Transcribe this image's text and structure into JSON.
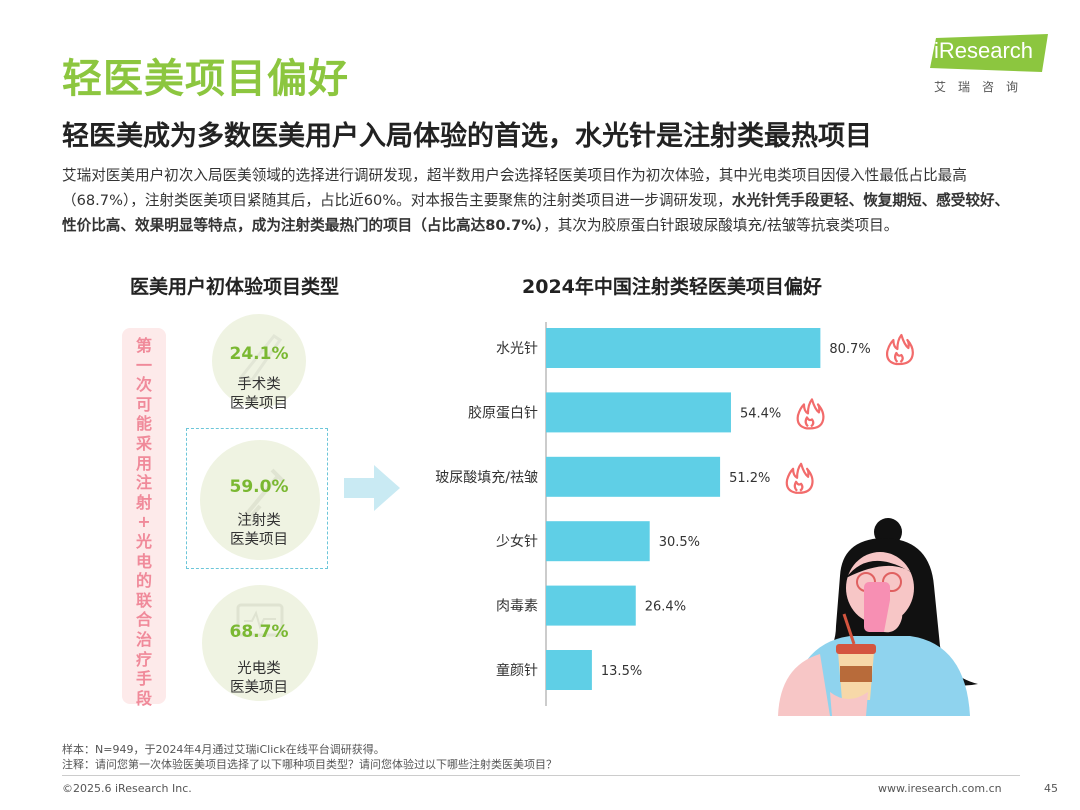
{
  "header": {
    "title": "轻医美项目偏好",
    "logo_text": "iResearch",
    "logo_sub": "艾瑞咨询",
    "subtitle": "轻医美成为多数医美用户入局体验的首选，水光针是注射类最热项目"
  },
  "description": {
    "part1": "艾瑞对医美用户初次入局医美领域的选择进行调研发现，超半数用户会选择轻医美项目作为初次体验，其中光电类项目因侵入性最低占比最高（68.7%），注射类医美项目紧随其后，占比近60%。对本报告主要聚焦的注射类项目进一步调研发现，",
    "bold": "水光针凭手段更轻、恢复期短、感受较好、性价比高、效果明显等特点，成为注射类最热门的项目（占比高达80.7%）",
    "part2": "，其次为胶原蛋白针跟玻尿酸填充/祛皱等抗衰类项目。"
  },
  "left_panel": {
    "title": "医美用户初体验项目类型",
    "side_label": "第一次可能采用注射+光电的联合治疗手段",
    "items": [
      {
        "pct": "24.1%",
        "label_line1": "手术类",
        "label_line2": "医美项目",
        "icon": "scalpel-icon"
      },
      {
        "pct": "59.0%",
        "label_line1": "注射类",
        "label_line2": "医美项目",
        "icon": "syringe-icon"
      },
      {
        "pct": "68.7%",
        "label_line1": "光电类",
        "label_line2": "医美项目",
        "icon": "device-icon"
      }
    ]
  },
  "chart_data": {
    "type": "bar",
    "orientation": "horizontal",
    "title": "2024年中国注射类轻医美项目偏好",
    "categories": [
      "水光针",
      "胶原蛋白针",
      "玻尿酸填充/祛皱",
      "少女针",
      "肉毒素",
      "童颜针"
    ],
    "values": [
      80.7,
      54.4,
      51.2,
      30.5,
      26.4,
      13.5
    ],
    "value_labels": [
      "80.7%",
      "54.4%",
      "51.2%",
      "30.5%",
      "26.4%",
      "13.5%"
    ],
    "hot_flags": [
      true,
      true,
      true,
      false,
      false,
      false
    ],
    "xlim": [
      0,
      100
    ],
    "bar_color": "#5fcfe6",
    "flame_color": "#f26b6b",
    "grid": false
  },
  "colors": {
    "accent_green": "#8cc63f",
    "pct_green": "#7ab832",
    "pink": "#f08a9a",
    "cyan": "#5fcfe6"
  },
  "footer": {
    "sample": "样本：N=949，于2024年4月通过艾瑞iClick在线平台调研获得。",
    "note": "注释：请问您第一次体验医美项目选择了以下哪种项目类型？请问您体验过以下哪些注射类医美项目？",
    "copyright": "©2025.6 iResearch Inc.",
    "website": "www.iresearch.com.cn",
    "page": "45"
  }
}
